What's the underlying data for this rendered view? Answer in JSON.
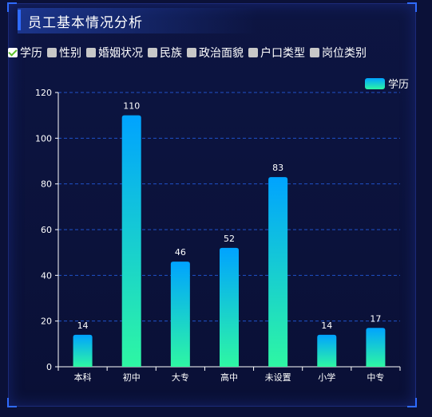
{
  "header": {
    "title": "员工基本情况分析"
  },
  "tabs": [
    {
      "label": "学历",
      "checked": true
    },
    {
      "label": "性别",
      "checked": false
    },
    {
      "label": "婚姻状况",
      "checked": false
    },
    {
      "label": "民族",
      "checked": false
    },
    {
      "label": "政治面貌",
      "checked": false
    },
    {
      "label": "户口类型",
      "checked": false
    },
    {
      "label": "岗位类别",
      "checked": false
    }
  ],
  "colors": {
    "bar_top": "#00a3ff",
    "bar_bottom": "#2ef7a3",
    "grid": "#1f52c9",
    "frame_accent": "#2f6bff"
  },
  "chart_data": {
    "type": "bar",
    "categories": [
      "本科",
      "初中",
      "大专",
      "高中",
      "未设置",
      "小学",
      "中专"
    ],
    "series": [
      {
        "name": "学历",
        "values": [
          14,
          110,
          46,
          52,
          83,
          14,
          17
        ]
      }
    ],
    "ylim": [
      0,
      120
    ],
    "yticks": [
      0,
      20,
      40,
      60,
      80,
      100,
      120
    ],
    "grid": true,
    "legend": "top-right"
  }
}
